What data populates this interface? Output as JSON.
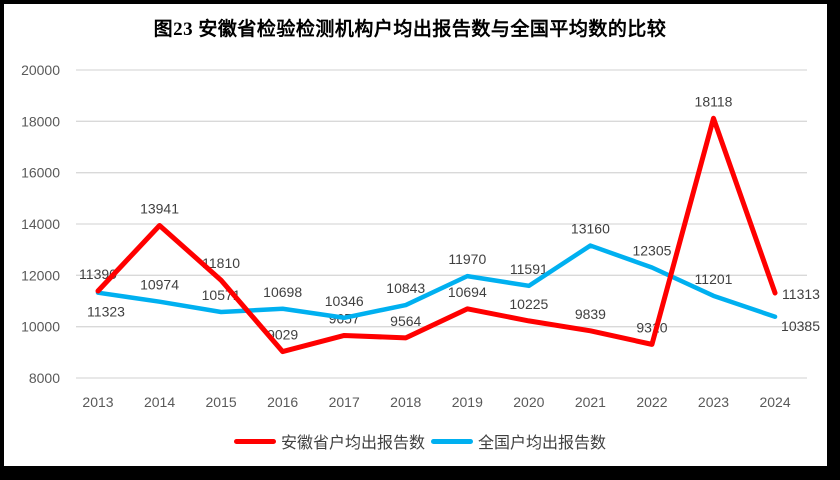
{
  "title": "图23 安徽省检验检测机构户均出报告数与全国平均数的比较",
  "frame": {
    "border_color": "#000000"
  },
  "chart_data": {
    "type": "line",
    "title": "图23 安徽省检验检测机构户均出报告数与全国平均数的比较",
    "categories": [
      "2013",
      "2014",
      "2015",
      "2016",
      "2017",
      "2018",
      "2019",
      "2020",
      "2021",
      "2022",
      "2023",
      "2024"
    ],
    "series": [
      {
        "name": "安徽省户均出报告数",
        "color": "#FF0000",
        "values": [
          11390,
          13941,
          11810,
          9029,
          9657,
          9564,
          10694,
          10225,
          9839,
          9310,
          18118,
          11313
        ],
        "label_positions": [
          "above",
          "above",
          "above",
          "above",
          "above",
          "above",
          "above",
          "above",
          "above",
          "above",
          "above",
          "right"
        ]
      },
      {
        "name": "全国户均出报告数",
        "color": "#00B0F0",
        "values": [
          11323,
          10974,
          10571,
          10698,
          10346,
          10843,
          11970,
          11591,
          13160,
          12305,
          11201,
          10385
        ],
        "label_positions": [
          "below",
          "above",
          "above",
          "above",
          "above",
          "above",
          "above",
          "above",
          "above",
          "above",
          "above",
          "right-low"
        ]
      }
    ],
    "ylim": [
      8000,
      20000
    ],
    "y_ticks": [
      8000,
      10000,
      12000,
      14000,
      16000,
      18000,
      20000
    ],
    "grid": true,
    "legend_position": "bottom",
    "gridline_color": "#D9D9D9",
    "axis_text_color": "#595959",
    "data_label_color": "#404040"
  }
}
